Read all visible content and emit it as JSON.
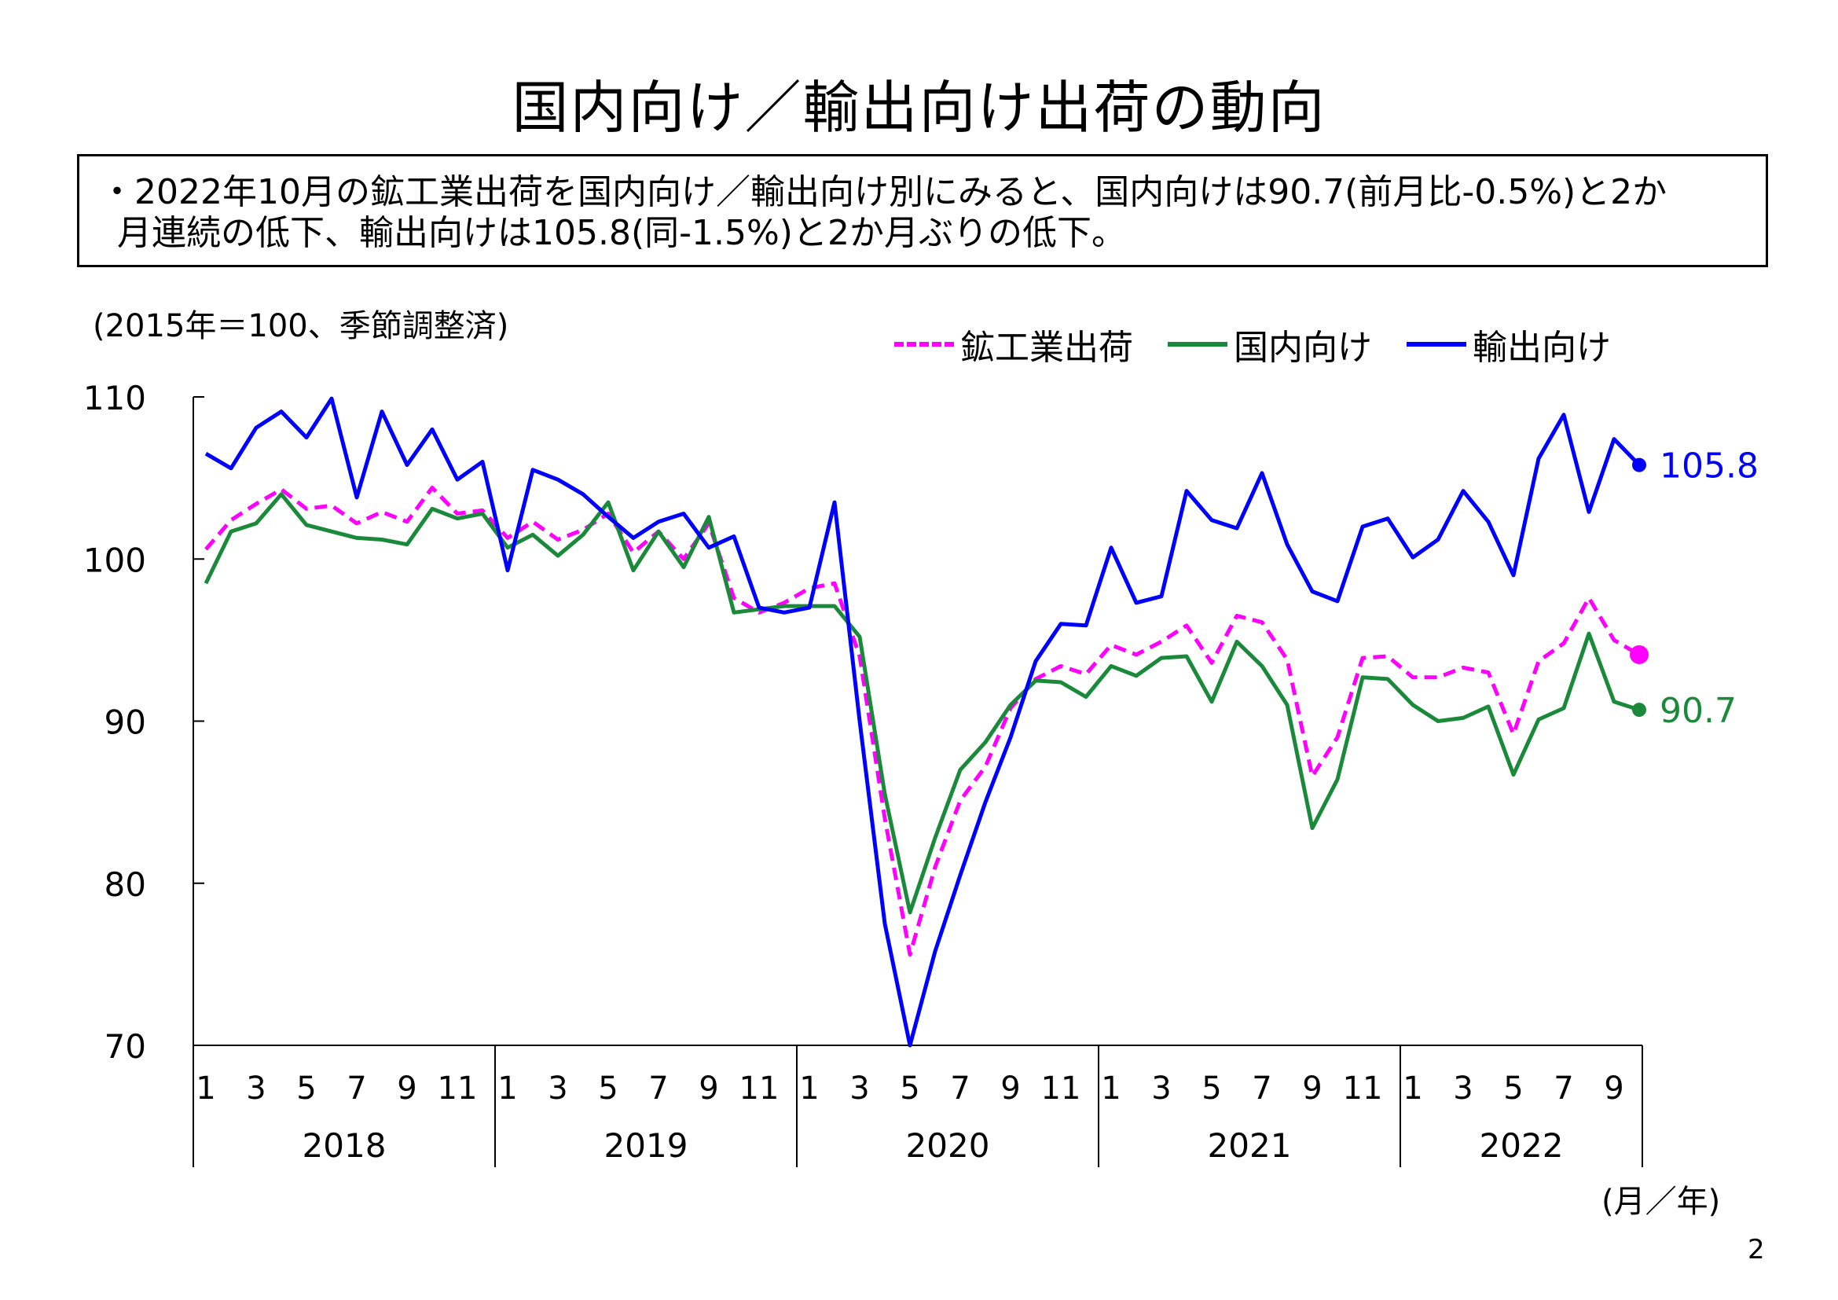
{
  "title": "国内向け／輸出向け出荷の動向",
  "summary": {
    "line1": "・2022年10月の鉱工業出荷を国内向け／輸出向け別にみると、国内向けは90.7(前月比-0.5%)と2か",
    "line2": "月連続の低下、輸出向けは105.8(同-1.5%)と2か月ぶりの低下。"
  },
  "unit_note": "(2015年＝100、季節調整済)",
  "axis_unit": "(月／年)",
  "page_number": "2",
  "colors": {
    "total": "#ff00ff",
    "domestic": "#1a8a3a",
    "export": "#0000ff"
  },
  "chart_data": {
    "type": "line",
    "ylim": [
      70,
      110
    ],
    "yticks": [
      "70",
      "80",
      "90",
      "100",
      "110"
    ],
    "month_tick_labels": [
      "1",
      "3",
      "5",
      "7",
      "9",
      "11"
    ],
    "years": [
      "2018",
      "2019",
      "2020",
      "2021",
      "2022"
    ],
    "grid": false,
    "legend_position": "top-right",
    "x": [
      "2018-01",
      "2018-02",
      "2018-03",
      "2018-04",
      "2018-05",
      "2018-06",
      "2018-07",
      "2018-08",
      "2018-09",
      "2018-10",
      "2018-11",
      "2018-12",
      "2019-01",
      "2019-02",
      "2019-03",
      "2019-04",
      "2019-05",
      "2019-06",
      "2019-07",
      "2019-08",
      "2019-09",
      "2019-10",
      "2019-11",
      "2019-12",
      "2020-01",
      "2020-02",
      "2020-03",
      "2020-04",
      "2020-05",
      "2020-06",
      "2020-07",
      "2020-08",
      "2020-09",
      "2020-10",
      "2020-11",
      "2020-12",
      "2021-01",
      "2021-02",
      "2021-03",
      "2021-04",
      "2021-05",
      "2021-06",
      "2021-07",
      "2021-08",
      "2021-09",
      "2021-10",
      "2021-11",
      "2021-12",
      "2022-01",
      "2022-02",
      "2022-03",
      "2022-04",
      "2022-05",
      "2022-06",
      "2022-07",
      "2022-08",
      "2022-09",
      "2022-10"
    ],
    "series": [
      {
        "name": "鉱工業出荷",
        "key": "total",
        "style": "dashed",
        "end_label": "",
        "values": [
          100.6,
          102.4,
          103.4,
          104.3,
          103.1,
          103.3,
          102.2,
          102.9,
          102.3,
          104.4,
          102.8,
          103.0,
          101.3,
          102.3,
          101.2,
          101.8,
          102.8,
          100.4,
          101.7,
          100.0,
          102.2,
          97.6,
          96.7,
          97.3,
          98.2,
          98.5,
          94.0,
          84.0,
          75.6,
          81.0,
          85.1,
          87.2,
          90.8,
          92.6,
          93.4,
          92.9,
          94.7,
          94.1,
          94.9,
          95.9,
          93.6,
          96.5,
          96.1,
          93.8,
          86.6,
          89.0,
          93.9,
          94.0,
          92.7,
          92.7,
          93.3,
          93.0,
          89.2,
          93.7,
          94.8,
          97.6,
          95.0,
          94.1
        ]
      },
      {
        "name": "国内向け",
        "key": "domestic",
        "style": "solid",
        "end_label": "90.7",
        "values": [
          98.5,
          101.7,
          102.2,
          104.0,
          102.1,
          101.7,
          101.3,
          101.2,
          100.9,
          103.1,
          102.5,
          102.8,
          100.7,
          101.5,
          100.2,
          101.5,
          103.5,
          99.3,
          101.7,
          99.5,
          102.6,
          96.7,
          96.9,
          97.1,
          97.1,
          97.1,
          95.2,
          85.5,
          78.2,
          82.8,
          87.0,
          88.7,
          91.0,
          92.5,
          92.4,
          91.5,
          93.4,
          92.8,
          93.9,
          94.0,
          91.2,
          94.9,
          93.4,
          91.0,
          83.4,
          86.4,
          92.7,
          92.6,
          91.0,
          90.0,
          90.2,
          90.9,
          86.7,
          90.1,
          90.8,
          95.4,
          91.2,
          90.7
        ]
      },
      {
        "name": "輸出向け",
        "key": "export",
        "style": "solid",
        "end_label": "105.8",
        "values": [
          106.5,
          105.6,
          108.1,
          109.1,
          107.5,
          109.9,
          103.8,
          109.1,
          105.8,
          108.0,
          104.9,
          106.0,
          99.3,
          105.5,
          104.9,
          104.0,
          102.6,
          101.3,
          102.3,
          102.8,
          100.7,
          101.4,
          97.0,
          96.7,
          97.0,
          103.5,
          90.0,
          77.5,
          70.0,
          75.8,
          80.5,
          85.0,
          89.0,
          93.7,
          96.0,
          95.9,
          100.7,
          97.3,
          97.7,
          104.2,
          102.4,
          101.9,
          105.3,
          100.9,
          98.0,
          97.4,
          102.0,
          102.5,
          100.1,
          101.2,
          104.2,
          102.3,
          99.0,
          106.2,
          108.9,
          102.9,
          107.4,
          105.8
        ]
      }
    ]
  }
}
